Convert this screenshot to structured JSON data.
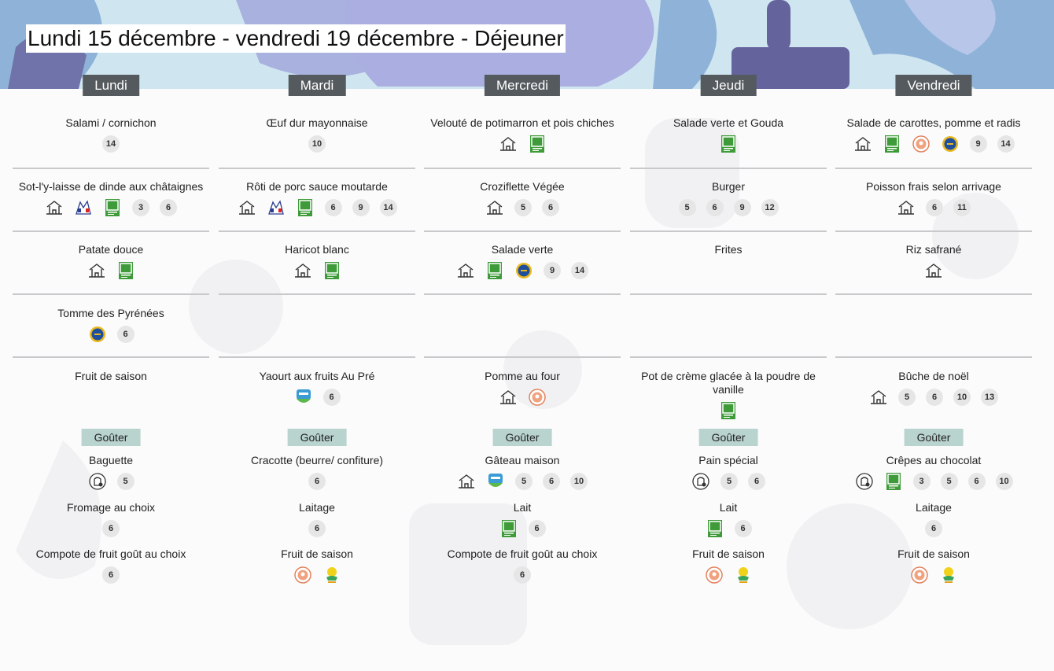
{
  "title": "Lundi 15 décembre - vendredi 19 décembre  - Déjeuner",
  "days": [
    {
      "name": "Lundi",
      "meals": [
        {
          "name": "Salami / cornichon",
          "allergens": [
            14
          ]
        },
        {
          "name": "Sot-l'y-laisse de dinde aux châtaignes",
          "allergens": [
            3,
            6
          ]
        },
        {
          "name": "Patate douce"
        },
        {
          "name": "Tomme des Pyrénées",
          "allergens": [
            6
          ]
        },
        {
          "name": "Fruit de saison"
        }
      ],
      "snack_label": "Goûter",
      "snack": [
        {
          "name": "Baguette",
          "allergens": [
            5
          ]
        },
        {
          "name": "Fromage au choix",
          "allergens": [
            6
          ]
        },
        {
          "name": "Compote de fruit goût au choix",
          "allergens": [
            6
          ]
        }
      ]
    },
    {
      "name": "Mardi",
      "meals": [
        {
          "name": "Œuf dur mayonnaise",
          "allergens": [
            10
          ]
        },
        {
          "name": "Rôti de porc sauce moutarde",
          "allergens": [
            6,
            9,
            14
          ]
        },
        {
          "name": "Haricot blanc"
        },
        null,
        {
          "name": "Yaourt aux fruits Au Pré",
          "allergens": [
            6
          ]
        }
      ],
      "snack_label": "Goûter",
      "snack": [
        {
          "name": "Cracotte (beurre/ confiture)",
          "allergens": [
            6
          ]
        },
        {
          "name": "Laitage",
          "allergens": [
            6
          ]
        },
        {
          "name": "Fruit de saison"
        }
      ]
    },
    {
      "name": "Mercredi",
      "meals": [
        {
          "name": "Velouté de potimarron et pois chiches"
        },
        {
          "name": "Croziflette Végée",
          "allergens": [
            5,
            6
          ]
        },
        {
          "name": "Salade verte",
          "allergens": [
            9,
            14
          ]
        },
        null,
        {
          "name": "Pomme au four"
        }
      ],
      "snack_label": "Goûter",
      "snack": [
        {
          "name": "Gâteau maison",
          "allergens": [
            5,
            6,
            10
          ]
        },
        {
          "name": "Lait",
          "allergens": [
            6
          ]
        },
        {
          "name": "Compote de fruit goût au choix",
          "allergens": [
            6
          ]
        }
      ]
    },
    {
      "name": "Jeudi",
      "meals": [
        {
          "name": "Salade verte et Gouda"
        },
        {
          "name": "Burger",
          "allergens": [
            5,
            6,
            9,
            12
          ]
        },
        {
          "name": "Frites"
        },
        null,
        {
          "name": "Pot de crème glacée à la poudre de vanille"
        }
      ],
      "snack_label": "Goûter",
      "snack": [
        {
          "name": "Pain spécial",
          "allergens": [
            5,
            6
          ]
        },
        {
          "name": "Lait",
          "allergens": [
            6
          ]
        },
        {
          "name": "Fruit de saison"
        }
      ]
    },
    {
      "name": "Vendredi",
      "meals": [
        {
          "name": "Salade de carottes, pomme et radis",
          "allergens": [
            9,
            14
          ]
        },
        {
          "name": "Poisson frais selon arrivage",
          "allergens": [
            6,
            11
          ]
        },
        {
          "name": "Riz safrané"
        },
        null,
        {
          "name": "Bûche de noël",
          "allergens": [
            5,
            6,
            10,
            13
          ]
        }
      ],
      "snack_label": "Goûter",
      "snack": [
        {
          "name": "Crêpes au chocolat",
          "allergens": [
            3,
            5,
            6,
            10
          ]
        },
        {
          "name": "Laitage",
          "allergens": [
            6
          ]
        },
        {
          "name": "Fruit de saison"
        }
      ]
    }
  ]
}
